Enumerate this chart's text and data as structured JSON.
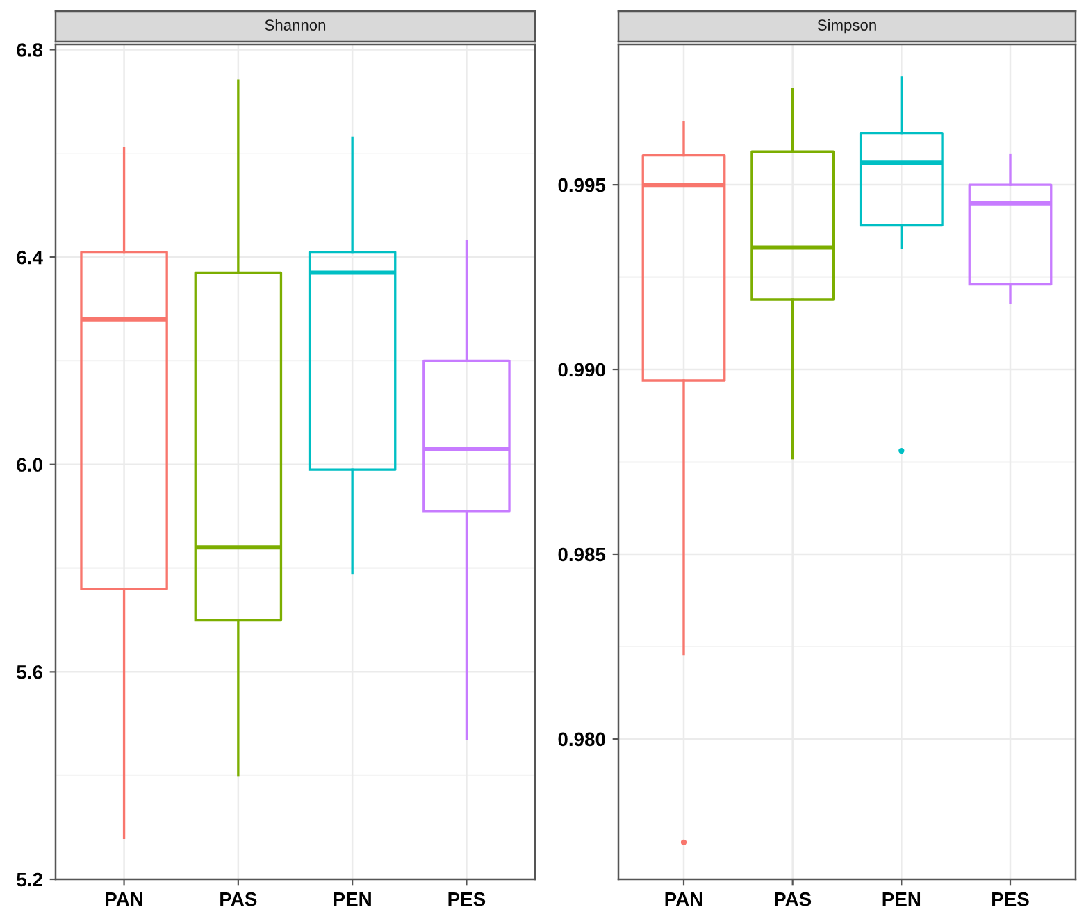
{
  "chart_data": [
    {
      "type": "box",
      "title": "Shannon",
      "categories": [
        "PAN",
        "PAS",
        "PEN",
        "PES"
      ],
      "colors": [
        "#f8766d",
        "#7cae00",
        "#00bfc4",
        "#c77cff"
      ],
      "boxes": [
        {
          "low": 5.28,
          "q1": 5.76,
          "median": 6.28,
          "q3": 6.41,
          "high": 6.61
        },
        {
          "low": 5.4,
          "q1": 5.7,
          "median": 5.84,
          "q3": 6.37,
          "high": 6.74
        },
        {
          "low": 5.79,
          "q1": 5.99,
          "median": 6.37,
          "q3": 6.41,
          "high": 6.63
        },
        {
          "low": 5.47,
          "q1": 5.91,
          "median": 6.03,
          "q3": 6.2,
          "high": 6.43
        }
      ],
      "ylim": [
        5.2,
        6.81
      ],
      "yticks": [
        {
          "value": 5.2,
          "label": "5.2"
        },
        {
          "value": 5.6,
          "label": "5.6"
        },
        {
          "value": 6.0,
          "label": "6.0"
        },
        {
          "value": 6.4,
          "label": "6.4"
        },
        {
          "value": 6.8,
          "label": "6.8"
        }
      ],
      "grid": true
    },
    {
      "type": "box",
      "title": "Simpson",
      "categories": [
        "PAN",
        "PAS",
        "PEN",
        "PES"
      ],
      "colors": [
        "#f8766d",
        "#7cae00",
        "#00bfc4",
        "#c77cff"
      ],
      "boxes": [
        {
          "low": 0.9823,
          "q1": 0.9897,
          "median": 0.995,
          "q3": 0.9958,
          "high": 0.9967,
          "outliers": [
            0.9772
          ]
        },
        {
          "low": 0.9876,
          "q1": 0.9919,
          "median": 0.9933,
          "q3": 0.9959,
          "high": 0.9976
        },
        {
          "low": 0.9933,
          "q1": 0.9939,
          "median": 0.9956,
          "q3": 0.9964,
          "high": 0.9979,
          "outliers": [
            0.9878
          ]
        },
        {
          "low": 0.9918,
          "q1": 0.9923,
          "median": 0.9945,
          "q3": 0.995,
          "high": 0.9958
        }
      ],
      "ylim": [
        0.9762,
        0.9988
      ],
      "yticks": [
        {
          "value": 0.98,
          "label": "0.980"
        },
        {
          "value": 0.985,
          "label": "0.985"
        },
        {
          "value": 0.99,
          "label": "0.990"
        },
        {
          "value": 0.995,
          "label": "0.995"
        }
      ],
      "grid": true
    }
  ]
}
